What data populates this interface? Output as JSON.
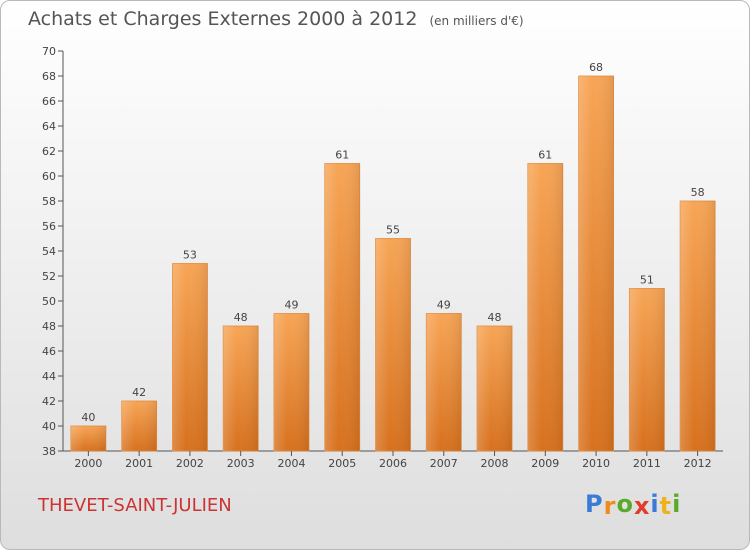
{
  "chart_data": {
    "type": "bar",
    "title": "Achats et Charges Externes 2000 à 2012",
    "subtitle": "(en milliers d'€)",
    "categories": [
      "2000",
      "2001",
      "2002",
      "2003",
      "2004",
      "2005",
      "2006",
      "2007",
      "2008",
      "2009",
      "2010",
      "2011",
      "2012"
    ],
    "values": [
      40,
      42,
      53,
      48,
      49,
      61,
      55,
      49,
      48,
      61,
      68,
      51,
      58
    ],
    "ylim": [
      38,
      70
    ],
    "yticks": [
      38,
      40,
      42,
      44,
      46,
      48,
      50,
      52,
      54,
      56,
      58,
      60,
      62,
      64,
      66,
      68,
      70
    ],
    "xlabel": "",
    "ylabel": "",
    "grid": false,
    "bar_color": "#f0903a"
  },
  "footer": {
    "place": "THEVET-SAINT-JULIEN",
    "logo_letters": [
      "P",
      "r",
      "o",
      "x",
      "i",
      "t",
      "i"
    ],
    "logo_colors": [
      "#3a7bd5",
      "#f08a1c",
      "#5aaa2a",
      "#e23c2c",
      "#3a7bd5",
      "#f0b21c",
      "#5aaa2a"
    ]
  }
}
